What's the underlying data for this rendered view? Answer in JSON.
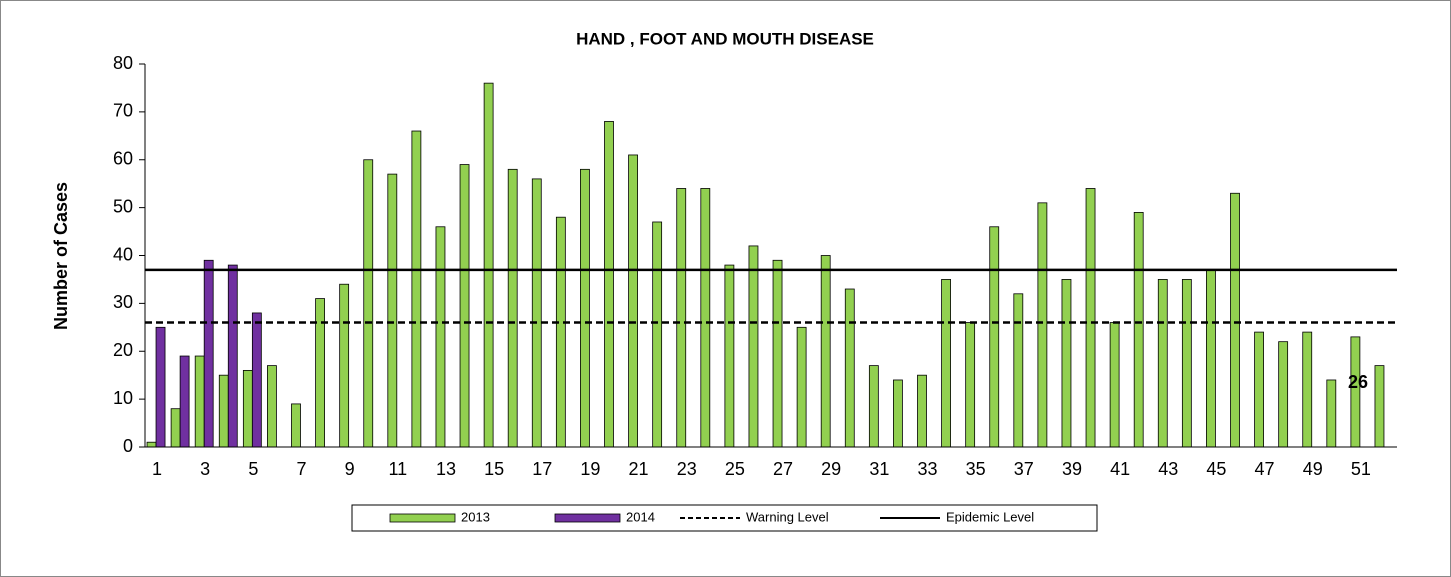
{
  "chart_data": {
    "type": "bar",
    "title": "HAND , FOOT AND MOUTH DISEASE",
    "ylabel": "Number of Cases",
    "categories": [
      1,
      null,
      3,
      null,
      5,
      null,
      7,
      null,
      9,
      null,
      11,
      null,
      13,
      null,
      15,
      null,
      17,
      null,
      19,
      null,
      21,
      null,
      23,
      null,
      25,
      null,
      27,
      null,
      29,
      null,
      31,
      null,
      33,
      null,
      35,
      null,
      37,
      null,
      39,
      null,
      41,
      null,
      43,
      null,
      45,
      null,
      47,
      null,
      49,
      null,
      51,
      null
    ],
    "series": [
      {
        "name": "2013",
        "color": "#92d050",
        "values": [
          1,
          8,
          19,
          15,
          16,
          17,
          9,
          31,
          34,
          60,
          57,
          66,
          46,
          59,
          76,
          58,
          56,
          48,
          58,
          68,
          61,
          47,
          54,
          54,
          38,
          42,
          39,
          25,
          40,
          33,
          17,
          14,
          15,
          35,
          26,
          46,
          32,
          51,
          35,
          54,
          26,
          49,
          35,
          35,
          37,
          53,
          24,
          22,
          24,
          14,
          23,
          17
        ]
      },
      {
        "name": "2014",
        "color": "#7030a0",
        "values": [
          25,
          19,
          39,
          38,
          28,
          null,
          null,
          null,
          null,
          null,
          null,
          null,
          null,
          null,
          null,
          null,
          null,
          null,
          null,
          null,
          null,
          null,
          null,
          null,
          null,
          null,
          null,
          null,
          null,
          null,
          null,
          null,
          null,
          null,
          null,
          null,
          null,
          null,
          null,
          null,
          null,
          null,
          null,
          null,
          null,
          null,
          null,
          null,
          null,
          null,
          null,
          null
        ]
      }
    ],
    "reference_lines": [
      {
        "name": "Warning Level",
        "value": 26,
        "style": "dashed",
        "color": "#000000"
      },
      {
        "name": "Epidemic Level",
        "value": 37,
        "style": "solid",
        "color": "#000000"
      }
    ],
    "annotations": [
      {
        "text": "26"
      }
    ],
    "ylim": [
      0,
      80
    ],
    "yticks": [
      0,
      10,
      20,
      30,
      40,
      50,
      60,
      70,
      80
    ],
    "legend": "bottom"
  }
}
